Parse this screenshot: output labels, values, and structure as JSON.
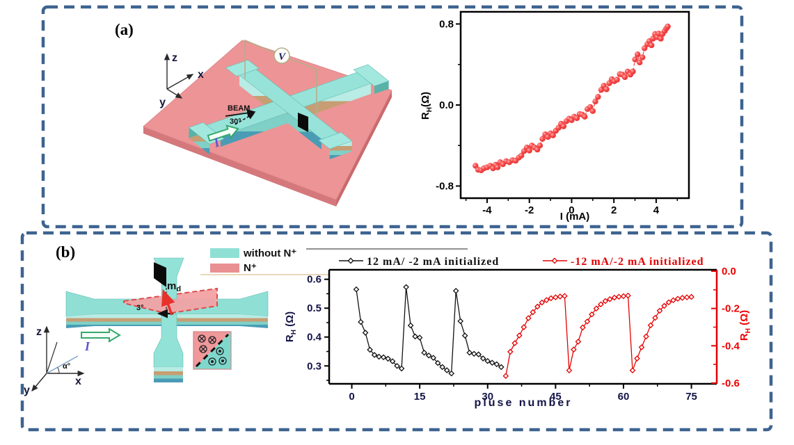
{
  "figure": {
    "panel_a_label": "(a)",
    "panel_b_label": "(b)",
    "border_color": "#3d6390"
  },
  "panel_a": {
    "axes": {
      "z": "z",
      "x": "x",
      "y": "y"
    },
    "beam_label": "BEAM",
    "beam_angle": "30°",
    "current_label": "I",
    "voltmeter_label": "V"
  },
  "panel_b": {
    "device_legend": [
      {
        "label": "without N⁺",
        "color": "#8fe0d4"
      },
      {
        "label": "N⁺",
        "color": "#e89092"
      }
    ],
    "moment_label": "m",
    "moment_sub": "d",
    "tilt_angle": "3°",
    "axes": {
      "z": "z",
      "x": "x",
      "y": "y"
    },
    "alpha_label": "α°",
    "current_label": "I"
  },
  "chart_data": [
    {
      "id": "chart_a",
      "type": "scatter",
      "xlabel": "I (mA)",
      "ylabel": "R",
      "ylabel_sub": "H",
      "ylabel_unit": "(Ω)",
      "x_ticks": [
        -4,
        -2,
        0,
        2,
        4
      ],
      "x_minor_ticks": [
        -5,
        -3,
        -1,
        1,
        3,
        5
      ],
      "y_ticks": [
        0.8,
        0.0,
        -0.8
      ],
      "y_minor_ticks": [
        0.4,
        -0.4
      ],
      "xlim": [
        -5.25,
        5.55
      ],
      "ylim": [
        -0.92,
        0.92
      ],
      "marker_color": "#f23d3d",
      "line_style": "dashed",
      "points": [
        [
          -4.55,
          -0.6
        ],
        [
          -4.42,
          -0.64
        ],
        [
          -4.28,
          -0.645
        ],
        [
          -4.15,
          -0.625
        ],
        [
          -4.0,
          -0.615
        ],
        [
          -3.85,
          -0.6
        ],
        [
          -3.72,
          -0.625
        ],
        [
          -3.6,
          -0.59
        ],
        [
          -3.5,
          -0.615
        ],
        [
          -3.38,
          -0.565
        ],
        [
          -3.25,
          -0.585
        ],
        [
          -3.1,
          -0.555
        ],
        [
          -2.95,
          -0.565
        ],
        [
          -2.8,
          -0.545
        ],
        [
          -2.65,
          -0.55
        ],
        [
          -2.5,
          -0.52
        ],
        [
          -2.38,
          -0.5
        ],
        [
          -2.25,
          -0.455
        ],
        [
          -2.12,
          -0.42
        ],
        [
          -2.0,
          -0.45
        ],
        [
          -1.88,
          -0.4
        ],
        [
          -1.75,
          -0.42
        ],
        [
          -1.62,
          -0.44
        ],
        [
          -1.5,
          -0.4
        ],
        [
          -1.38,
          -0.335
        ],
        [
          -1.25,
          -0.29
        ],
        [
          -1.12,
          -0.315
        ],
        [
          -1.0,
          -0.28
        ],
        [
          -0.88,
          -0.3
        ],
        [
          -0.75,
          -0.255
        ],
        [
          -0.62,
          -0.225
        ],
        [
          -0.5,
          -0.185
        ],
        [
          -0.38,
          -0.21
        ],
        [
          -0.25,
          -0.16
        ],
        [
          -0.12,
          -0.135
        ],
        [
          0.0,
          -0.15
        ],
        [
          0.12,
          -0.115
        ],
        [
          0.25,
          -0.13
        ],
        [
          0.38,
          -0.09
        ],
        [
          0.5,
          -0.095
        ],
        [
          0.62,
          -0.115
        ],
        [
          0.75,
          -0.04
        ],
        [
          0.88,
          -0.02
        ],
        [
          1.0,
          -0.06
        ],
        [
          1.12,
          0.035
        ],
        [
          1.25,
          0.08
        ],
        [
          1.4,
          0.15
        ],
        [
          1.52,
          0.19
        ],
        [
          1.65,
          0.155
        ],
        [
          1.78,
          0.215
        ],
        [
          1.9,
          0.255
        ],
        [
          2.02,
          0.235
        ],
        [
          2.15,
          0.25
        ],
        [
          2.28,
          0.305
        ],
        [
          2.4,
          0.3
        ],
        [
          2.52,
          0.275
        ],
        [
          2.65,
          0.33
        ],
        [
          2.78,
          0.3
        ],
        [
          2.9,
          0.33
        ],
        [
          3.0,
          0.45
        ],
        [
          3.12,
          0.5
        ],
        [
          3.22,
          0.42
        ],
        [
          3.35,
          0.47
        ],
        [
          3.45,
          0.56
        ],
        [
          3.58,
          0.6
        ],
        [
          3.68,
          0.63
        ],
        [
          3.78,
          0.59
        ],
        [
          3.85,
          0.655
        ],
        [
          3.95,
          0.7
        ],
        [
          4.05,
          0.67
        ],
        [
          4.12,
          0.705
        ],
        [
          4.22,
          0.655
        ],
        [
          4.3,
          0.7
        ],
        [
          4.4,
          0.73
        ],
        [
          4.48,
          0.755
        ],
        [
          4.55,
          0.775
        ]
      ]
    },
    {
      "id": "chart_b",
      "type": "line",
      "xlabel": "pluse number",
      "x_ticks": [
        0,
        15,
        30,
        45,
        60,
        75
      ],
      "x_minor_ticks": [
        7.5,
        22.5,
        37.5,
        52.5,
        67.5
      ],
      "xlim": [
        -5,
        80.6
      ],
      "left_axis": {
        "label": "R",
        "label_sub": "H",
        "label_unit": "(Ω)",
        "ticks": [
          0.6,
          0.5,
          0.4,
          0.3
        ],
        "minor_ticks": [
          0.55,
          0.45,
          0.35,
          0.25
        ],
        "lim": [
          0.238,
          0.633
        ],
        "color": "#131347"
      },
      "right_axis": {
        "label": "R",
        "label_sub": "H",
        "label_unit": "(Ω)",
        "ticks": [
          0.0,
          -0.2,
          -0.4,
          -0.6
        ],
        "minor_ticks": [
          -0.1,
          -0.3,
          -0.5
        ],
        "lim": [
          -0.604,
          0.0075
        ],
        "color": "#ee0000"
      },
      "series": [
        {
          "name": "12 mA/ -2 mA initialized",
          "axis": "left",
          "color": "#111111",
          "points": [
            [
              1,
              0.565
            ],
            [
              2,
              0.452
            ],
            [
              3,
              0.415
            ],
            [
              4,
              0.356
            ],
            [
              5,
              0.338
            ],
            [
              6,
              0.332
            ],
            [
              7,
              0.33
            ],
            [
              8,
              0.325
            ],
            [
              9,
              0.316
            ],
            [
              10,
              0.3
            ],
            [
              11,
              0.291
            ],
            [
              12,
              0.573
            ],
            [
              13,
              0.44
            ],
            [
              14,
              0.402
            ],
            [
              15,
              0.398
            ],
            [
              16,
              0.346
            ],
            [
              17,
              0.336
            ],
            [
              18,
              0.328
            ],
            [
              19,
              0.31
            ],
            [
              20,
              0.296
            ],
            [
              21,
              0.285
            ],
            [
              22,
              0.274
            ],
            [
              23,
              0.56
            ],
            [
              24,
              0.455
            ],
            [
              25,
              0.405
            ],
            [
              26,
              0.346
            ],
            [
              27,
              0.342
            ],
            [
              28,
              0.34
            ],
            [
              29,
              0.326
            ],
            [
              30,
              0.317
            ],
            [
              31,
              0.311
            ],
            [
              32,
              0.306
            ],
            [
              33,
              0.296
            ]
          ]
        },
        {
          "name": "-12 mA/-2 mA initialized",
          "axis": "right",
          "color": "#e40000",
          "points": [
            [
              34,
              -0.562
            ],
            [
              35,
              -0.432
            ],
            [
              36,
              -0.386
            ],
            [
              37,
              -0.345
            ],
            [
              38,
              -0.3
            ],
            [
              39,
              -0.252
            ],
            [
              40,
              -0.22
            ],
            [
              41,
              -0.19
            ],
            [
              42,
              -0.168
            ],
            [
              43,
              -0.155
            ],
            [
              44,
              -0.145
            ],
            [
              45,
              -0.14
            ],
            [
              46,
              -0.136
            ],
            [
              47,
              -0.133
            ],
            [
              48,
              -0.532
            ],
            [
              49,
              -0.42
            ],
            [
              50,
              -0.378
            ],
            [
              51,
              -0.302
            ],
            [
              52,
              -0.27
            ],
            [
              53,
              -0.232
            ],
            [
              54,
              -0.2
            ],
            [
              55,
              -0.178
            ],
            [
              56,
              -0.16
            ],
            [
              57,
              -0.15
            ],
            [
              58,
              -0.142
            ],
            [
              59,
              -0.137
            ],
            [
              60,
              -0.134
            ],
            [
              61,
              -0.131
            ],
            [
              62,
              -0.532
            ],
            [
              63,
              -0.468
            ],
            [
              64,
              -0.408
            ],
            [
              65,
              -0.35
            ],
            [
              66,
              -0.29
            ],
            [
              67,
              -0.25
            ],
            [
              68,
              -0.212
            ],
            [
              69,
              -0.186
            ],
            [
              70,
              -0.167
            ],
            [
              71,
              -0.156
            ],
            [
              72,
              -0.148
            ],
            [
              73,
              -0.143
            ],
            [
              74,
              -0.14
            ],
            [
              75,
              -0.138
            ]
          ]
        }
      ]
    }
  ]
}
